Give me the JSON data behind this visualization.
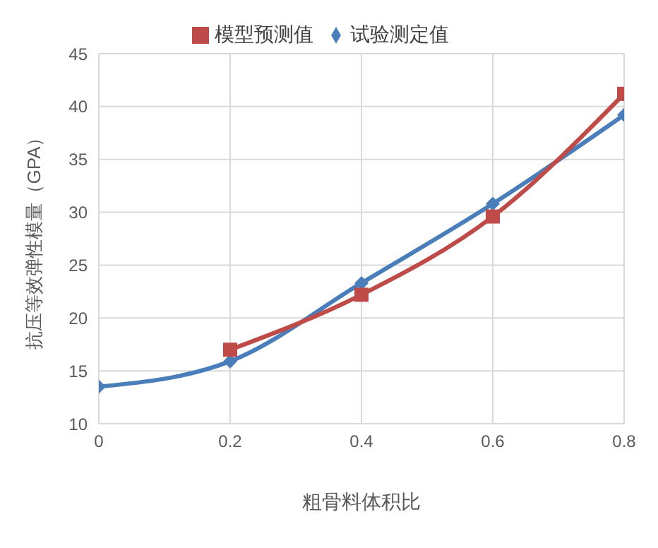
{
  "chart_data": {
    "type": "line",
    "xlabel": "粗骨料体积比",
    "ylabel": "抗压等效弹性模量（GPA）",
    "x": [
      0,
      0.2,
      0.4,
      0.6,
      0.8
    ],
    "series": [
      {
        "name": "试验测定值",
        "color": "#4a7ebb",
        "marker": "diamond",
        "values": [
          13.5,
          15.9,
          23.3,
          30.8,
          39.2
        ]
      },
      {
        "name": "模型预测值",
        "color": "#be4b48",
        "marker": "square",
        "values": [
          null,
          17.0,
          22.2,
          29.6,
          41.2
        ]
      }
    ],
    "xlim": [
      0,
      0.8
    ],
    "xticks": [
      0,
      0.2,
      0.4,
      0.6,
      0.8
    ],
    "ylim": [
      10,
      45
    ],
    "yticks": [
      10,
      15,
      20,
      25,
      30,
      35,
      40,
      45
    ],
    "grid": true,
    "legend": "top",
    "line_style": "solid"
  }
}
